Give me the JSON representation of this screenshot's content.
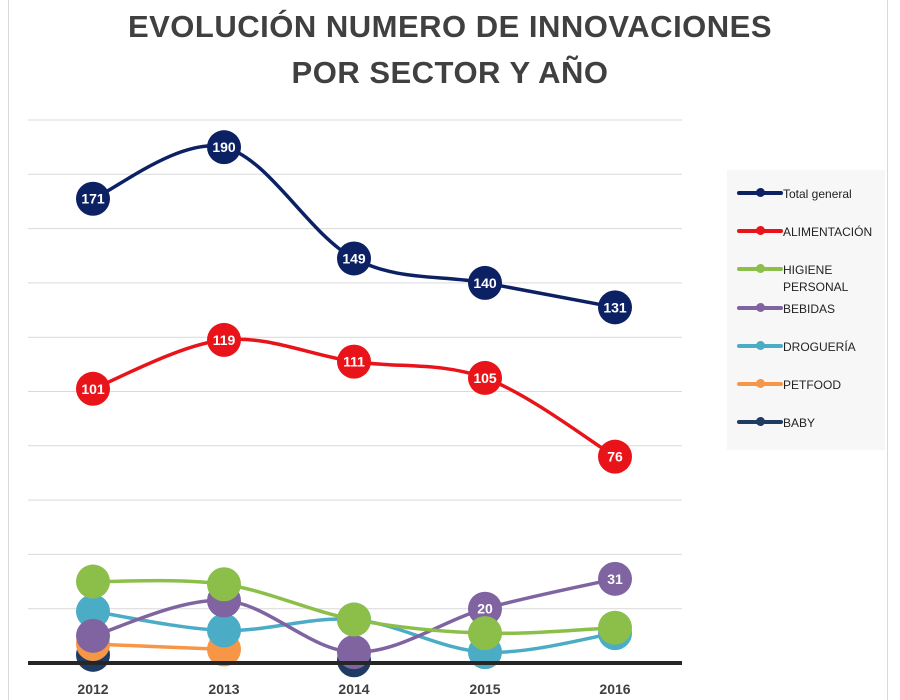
{
  "title_lines": [
    "EVOLUCIÓN NUMERO DE INNOVACIONES",
    "POR SECTOR Y AÑO"
  ],
  "chart_data": {
    "type": "line",
    "title": "EVOLUCIÓN NUMERO DE INNOVACIONES POR SECTOR Y AÑO",
    "categories": [
      "2012",
      "2013",
      "2014",
      "2015",
      "2016"
    ],
    "ylim": [
      0,
      200
    ],
    "grid": true,
    "legend_position": "right",
    "series": [
      {
        "name": "Total general",
        "color": "#0c2163",
        "values": [
          171,
          190,
          149,
          140,
          131
        ],
        "show_labels": true
      },
      {
        "name": "ALIMENTACIÓN",
        "color": "#e8141a",
        "values": [
          101,
          119,
          111,
          105,
          76
        ],
        "show_labels": true
      },
      {
        "name": "HIGIENE PERSONAL",
        "color": "#8cbf4a",
        "values": [
          30,
          29,
          16,
          11,
          13
        ],
        "show_labels": false
      },
      {
        "name": "BEBIDAS",
        "color": "#8064a2",
        "values": [
          10,
          23,
          4,
          20,
          31
        ],
        "show_labels": [
          false,
          false,
          false,
          true,
          true
        ]
      },
      {
        "name": "DROGUERÍA",
        "color": "#4bacc6",
        "values": [
          19,
          12,
          16,
          4,
          11
        ],
        "show_labels": false
      },
      {
        "name": "PETFOOD",
        "color": "#f79646",
        "values": [
          7,
          5,
          null,
          null,
          null
        ],
        "show_labels": false
      },
      {
        "name": "BABY",
        "color": "#1f3b63",
        "values": [
          3,
          null,
          1,
          null,
          null
        ],
        "show_labels": false
      }
    ]
  },
  "legend": [
    {
      "label": "Total general",
      "color": "#0c2163"
    },
    {
      "label": "ALIMENTACIÓN",
      "color": "#e8141a"
    },
    {
      "label": "HIGIENE PERSONAL",
      "color": "#8cbf4a"
    },
    {
      "label": "BEBIDAS",
      "color": "#8064a2"
    },
    {
      "label": "DROGUERÍA",
      "color": "#4bacc6"
    },
    {
      "label": "PETFOOD",
      "color": "#f79646"
    },
    {
      "label": "BABY",
      "color": "#1f3b63"
    }
  ]
}
